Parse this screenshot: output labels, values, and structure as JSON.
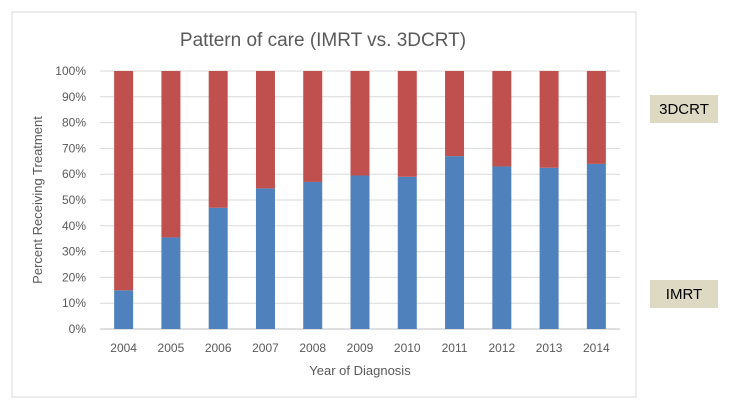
{
  "chart_data": {
    "type": "bar",
    "stacked": true,
    "title": "Pattern of care (IMRT vs. 3DCRT)",
    "xlabel": "Year of Diagnosis",
    "ylabel": "Percent Receiving Treatment",
    "ylim": [
      0,
      100
    ],
    "yticks": [
      "0%",
      "10%",
      "20%",
      "30%",
      "40%",
      "50%",
      "60%",
      "70%",
      "80%",
      "90%",
      "100%"
    ],
    "categories": [
      "2004",
      "2005",
      "2006",
      "2007",
      "2008",
      "2009",
      "2010",
      "2011",
      "2012",
      "2013",
      "2014"
    ],
    "grid": true,
    "series": [
      {
        "name": "IMRT",
        "color": "#4f81bd",
        "values": [
          15,
          35.5,
          47,
          54.5,
          57,
          59.5,
          59,
          67,
          63,
          62.5,
          64
        ]
      },
      {
        "name": "3DCRT",
        "color": "#c0504d",
        "values": [
          85,
          64.5,
          53,
          45.5,
          43,
          40.5,
          41,
          33,
          37,
          37.5,
          36
        ]
      }
    ]
  }
}
